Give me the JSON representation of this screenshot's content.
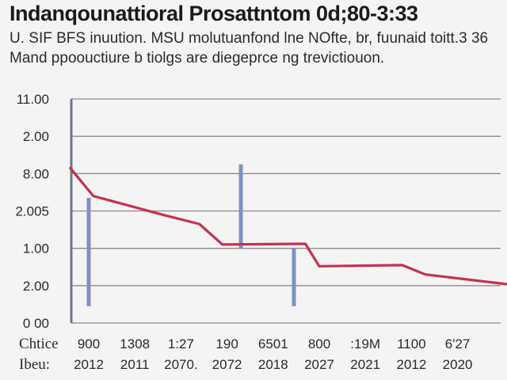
{
  "header": {
    "title": "Indanqounattioral Prosattntom 0d;80-3:33",
    "subtitle_line1": "U. SIF BFS inuution. MSU molutuanfond lne NOfte, br, fuunaid toitt.3 36",
    "subtitle_line2": "Mand ppoouctiure b tiolgs are diegeprce ng trevictiouon."
  },
  "colors": {
    "background": "#f4f4f4",
    "line": "#c8304f",
    "bars": "#7f91c2",
    "axis": "#6f7787",
    "grid": "#8b8b8b",
    "text": "#2a2a2a"
  },
  "chart_data": {
    "type": "line",
    "title": "Indanqounattioral Prosattntom 0d;80-3:33",
    "xlabel": "",
    "ylabel": "",
    "grid": true,
    "legend": "none",
    "ylim": [
      0,
      6
    ],
    "y_ticks": [
      {
        "value": 0,
        "label": "0 00"
      },
      {
        "value": 1,
        "label": "2.00"
      },
      {
        "value": 2,
        "label": "1.00"
      },
      {
        "value": 3,
        "label": "2.005"
      },
      {
        "value": 4,
        "label": "8.00"
      },
      {
        "value": 5,
        "label": "2.00"
      },
      {
        "value": 6,
        "label": "11.00"
      }
    ],
    "row_labels": [
      "Chtice",
      "Ibeu:"
    ],
    "categories": [
      {
        "top": "900",
        "bottom": "2012"
      },
      {
        "top": "1308",
        "bottom": "2011"
      },
      {
        "top": "1:27",
        "bottom": "2070."
      },
      {
        "top": "190",
        "bottom": "2072"
      },
      {
        "top": "6501",
        "bottom": "2018"
      },
      {
        "top": "800",
        "bottom": "2027"
      },
      {
        "top": ":19M",
        "bottom": "2021"
      },
      {
        "top": "1100",
        "bottom": "2012"
      },
      {
        "top": "6'27",
        "bottom": "2020"
      }
    ],
    "series": [
      {
        "type": "line",
        "x": [
          -0.4,
          0.1,
          1.6,
          2.4,
          2.9,
          4.7,
          5.0,
          6.8,
          7.3,
          9.0,
          11.3
        ],
        "values": [
          4.15,
          3.4,
          2.9,
          2.65,
          2.1,
          2.12,
          1.52,
          1.55,
          1.3,
          1.05,
          0.75
        ]
      },
      {
        "type": "bar",
        "bars": [
          {
            "x": 0.0,
            "from": 0.45,
            "to": 3.35
          },
          {
            "x": 3.3,
            "from": 2.0,
            "to": 4.25
          },
          {
            "x": 4.45,
            "from": 0.45,
            "to": 2.0
          }
        ]
      }
    ]
  }
}
